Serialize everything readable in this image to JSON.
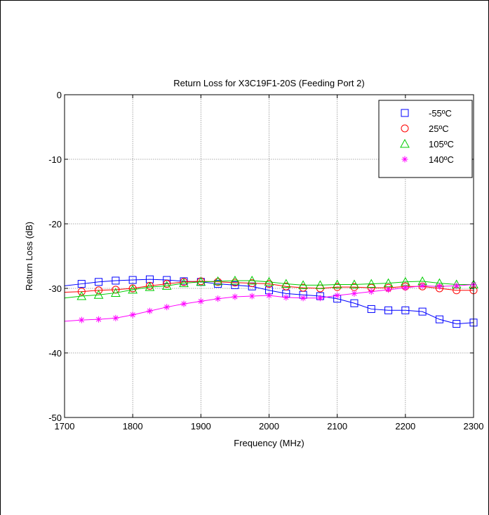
{
  "chart_data": {
    "type": "line",
    "title": "Return Loss for X3C19F1-20S (Feeding Port 2)",
    "xlabel": "Frequency (MHz)",
    "ylabel": "Return Loss (dB)",
    "xlim": [
      1700,
      2300
    ],
    "ylim": [
      -50,
      0
    ],
    "xticks": [
      1700,
      1800,
      1900,
      2000,
      2100,
      2200,
      2300
    ],
    "yticks": [
      0,
      -10,
      -20,
      -30,
      -40,
      -50
    ],
    "grid": true,
    "legend_position": "top-right",
    "x": [
      1725,
      1750,
      1775,
      1800,
      1825,
      1850,
      1875,
      1900,
      1925,
      1950,
      1975,
      2000,
      2025,
      2050,
      2075,
      2100,
      2125,
      2150,
      2175,
      2200,
      2225,
      2250,
      2275,
      2300
    ],
    "series": [
      {
        "name": "-55ºC",
        "color": "#0000ff",
        "marker": "square",
        "x_start": 1700,
        "y_start": -29.6,
        "values": [
          -29.3,
          -29.0,
          -28.8,
          -28.7,
          -28.6,
          -28.7,
          -28.9,
          -29.0,
          -29.3,
          -29.5,
          -29.7,
          -30.3,
          -30.8,
          -31.0,
          -31.2,
          -31.6,
          -32.3,
          -33.2,
          -33.4,
          -33.4,
          -33.6,
          -34.8,
          -35.5,
          -35.3
        ]
      },
      {
        "name": "25ºC",
        "color": "#ff0000",
        "marker": "circle",
        "x_start": 1700,
        "y_start": -30.6,
        "values": [
          -30.5,
          -30.3,
          -30.2,
          -30.0,
          -29.6,
          -29.3,
          -29.0,
          -28.9,
          -29.0,
          -29.1,
          -29.2,
          -29.3,
          -29.7,
          -29.9,
          -30.0,
          -29.8,
          -29.8,
          -29.9,
          -29.9,
          -29.7,
          -29.7,
          -30.0,
          -30.3,
          -30.3
        ]
      },
      {
        "name": "105ºC",
        "color": "#00cc00",
        "marker": "triangle",
        "x_start": 1700,
        "y_start": -31.5,
        "values": [
          -31.2,
          -31.0,
          -30.7,
          -30.2,
          -29.8,
          -29.6,
          -29.2,
          -29.0,
          -28.9,
          -28.8,
          -28.8,
          -29.0,
          -29.3,
          -29.5,
          -29.5,
          -29.4,
          -29.4,
          -29.3,
          -29.2,
          -29.0,
          -28.9,
          -29.2,
          -29.4,
          -29.4
        ]
      },
      {
        "name": "140ºC",
        "color": "#ff00ff",
        "marker": "asterisk",
        "x_start": 1700,
        "y_start": -35.1,
        "values": [
          -34.9,
          -34.8,
          -34.6,
          -34.1,
          -33.5,
          -32.9,
          -32.4,
          -32.0,
          -31.6,
          -31.3,
          -31.2,
          -31.1,
          -31.4,
          -31.5,
          -31.5,
          -31.1,
          -30.8,
          -30.5,
          -30.2,
          -29.9,
          -29.6,
          -29.7,
          -29.6,
          -29.4
        ]
      }
    ]
  }
}
